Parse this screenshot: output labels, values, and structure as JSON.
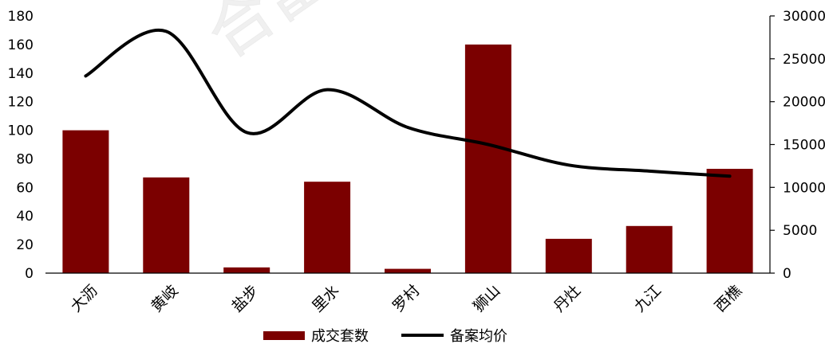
{
  "chart_data": {
    "type": "bar",
    "categories": [
      "大沥",
      "黄岐",
      "盐步",
      "里水",
      "罗村",
      "狮山",
      "丹灶",
      "九江",
      "西樵"
    ],
    "series": [
      {
        "name": "成交套数",
        "type": "bar",
        "axis": "left",
        "color": "#7b0000",
        "values": [
          100,
          67,
          4,
          64,
          3,
          160,
          24,
          33,
          73
        ]
      },
      {
        "name": "备案均价",
        "type": "line",
        "axis": "right",
        "color": "#000000",
        "values": [
          23000,
          28200,
          16400,
          21400,
          17000,
          15000,
          12600,
          11900,
          11300
        ]
      }
    ],
    "y_left": {
      "min": 0,
      "max": 180,
      "ticks": [
        0,
        20,
        40,
        60,
        80,
        100,
        120,
        140,
        160,
        180
      ]
    },
    "y_right": {
      "min": 0,
      "max": 30000,
      "ticks": [
        0,
        5000,
        10000,
        15000,
        20000,
        25000,
        30000
      ]
    },
    "grid": false,
    "legend_position": "bottom"
  }
}
